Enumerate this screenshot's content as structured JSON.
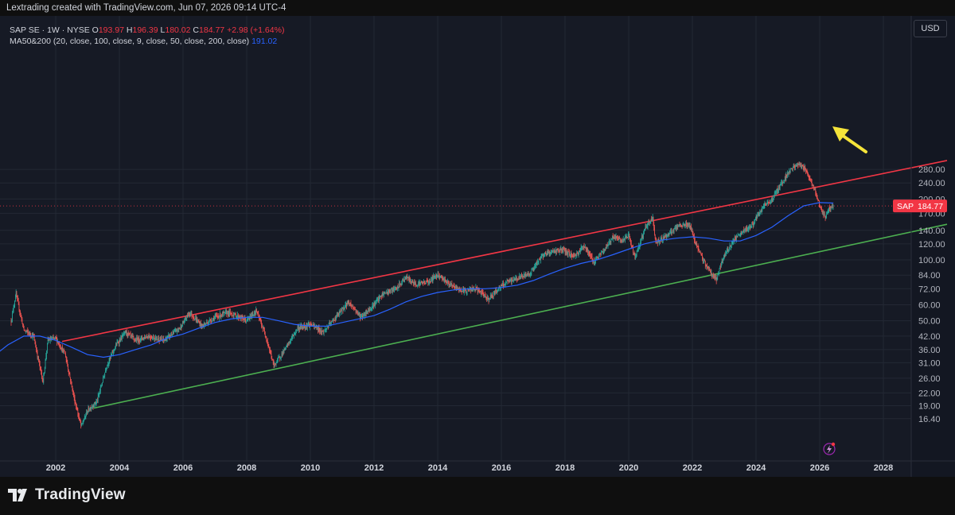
{
  "header": {
    "caption": "Lextrading created with TradingView.com, Jun 07, 2026 09:14 UTC-4"
  },
  "legend": {
    "symbol": "SAP SE · 1W · NYSE",
    "open_label": "O",
    "open": "193.97",
    "high_label": "H",
    "high": "196.39",
    "low_label": "L",
    "low": "180.02",
    "close_label": "C",
    "close": "184.77",
    "change": "+2.98 (+1.64%)",
    "ma_label": "MA50&200 (20, close, 100, close, 9, close, 50, close, 200, close)",
    "ma_value": "191.02"
  },
  "currency_button": "USD",
  "price_tag": {
    "symbol": "SAP",
    "value": "184.77"
  },
  "footer": {
    "brand": "TradingView"
  },
  "colors": {
    "background": "#161a25",
    "up": "#26a69a",
    "down": "#ef5350",
    "ma": "#2962ff",
    "upper_channel": "#f23645",
    "lower_channel": "#4caf50",
    "arrow": "#f5e43a"
  },
  "icons": [
    "tradingview-logo-icon",
    "lightning-icon",
    "arrow-annotation-icon"
  ],
  "chart_data": {
    "type": "candlestick",
    "scale": "log",
    "timeframe": "1W",
    "y_ticks": [
      "280.00",
      "240.00",
      "200.00",
      "170.00",
      "140.00",
      "120.00",
      "100.00",
      "84.00",
      "72.00",
      "60.00",
      "50.00",
      "42.00",
      "36.00",
      "31.00",
      "26.00",
      "22.00",
      "19.00",
      "16.40"
    ],
    "x_ticks": [
      "2002",
      "2004",
      "2006",
      "2008",
      "2010",
      "2012",
      "2014",
      "2016",
      "2018",
      "2020",
      "2022",
      "2024",
      "2026",
      "2028"
    ],
    "price_path": [
      [
        2000.6,
        50
      ],
      [
        2000.75,
        68
      ],
      [
        2001.0,
        45
      ],
      [
        2001.3,
        42
      ],
      [
        2001.6,
        25
      ],
      [
        2001.75,
        40
      ],
      [
        2002.0,
        41
      ],
      [
        2002.3,
        34
      ],
      [
        2002.6,
        20
      ],
      [
        2002.8,
        15
      ],
      [
        2003.0,
        18
      ],
      [
        2003.3,
        20
      ],
      [
        2003.6,
        30
      ],
      [
        2003.9,
        38
      ],
      [
        2004.2,
        44
      ],
      [
        2004.5,
        40
      ],
      [
        2004.9,
        42
      ],
      [
        2005.4,
        40
      ],
      [
        2005.9,
        46
      ],
      [
        2006.2,
        55
      ],
      [
        2006.6,
        47
      ],
      [
        2007.0,
        52
      ],
      [
        2007.4,
        55
      ],
      [
        2007.8,
        52
      ],
      [
        2008.0,
        50
      ],
      [
        2008.3,
        56
      ],
      [
        2008.6,
        42
      ],
      [
        2008.85,
        30
      ],
      [
        2009.2,
        36
      ],
      [
        2009.6,
        46
      ],
      [
        2010.0,
        48
      ],
      [
        2010.4,
        44
      ],
      [
        2010.8,
        52
      ],
      [
        2011.2,
        62
      ],
      [
        2011.6,
        52
      ],
      [
        2011.9,
        58
      ],
      [
        2012.3,
        68
      ],
      [
        2012.7,
        72
      ],
      [
        2013.0,
        82
      ],
      [
        2013.3,
        76
      ],
      [
        2013.7,
        78
      ],
      [
        2014.0,
        85
      ],
      [
        2014.4,
        75
      ],
      [
        2014.8,
        70
      ],
      [
        2015.2,
        72
      ],
      [
        2015.6,
        64
      ],
      [
        2015.9,
        72
      ],
      [
        2016.2,
        78
      ],
      [
        2016.6,
        82
      ],
      [
        2016.9,
        86
      ],
      [
        2017.3,
        106
      ],
      [
        2017.6,
        110
      ],
      [
        2017.9,
        112
      ],
      [
        2018.3,
        104
      ],
      [
        2018.6,
        118
      ],
      [
        2018.9,
        98
      ],
      [
        2019.2,
        110
      ],
      [
        2019.5,
        130
      ],
      [
        2019.8,
        124
      ],
      [
        2020.0,
        132
      ],
      [
        2020.2,
        102
      ],
      [
        2020.5,
        142
      ],
      [
        2020.75,
        162
      ],
      [
        2020.85,
        122
      ],
      [
        2021.2,
        132
      ],
      [
        2021.6,
        148
      ],
      [
        2021.9,
        150
      ],
      [
        2022.2,
        110
      ],
      [
        2022.5,
        90
      ],
      [
        2022.75,
        80
      ],
      [
        2023.0,
        105
      ],
      [
        2023.3,
        125
      ],
      [
        2023.6,
        138
      ],
      [
        2023.9,
        150
      ],
      [
        2024.2,
        180
      ],
      [
        2024.5,
        200
      ],
      [
        2024.8,
        240
      ],
      [
        2025.1,
        282
      ],
      [
        2025.35,
        298
      ],
      [
        2025.55,
        280
      ],
      [
        2025.7,
        252
      ],
      [
        2025.9,
        210
      ],
      [
        2026.05,
        176
      ],
      [
        2026.18,
        162
      ],
      [
        2026.3,
        180
      ],
      [
        2026.43,
        185
      ]
    ],
    "ma_path": [
      [
        2000.0,
        33
      ],
      [
        2000.5,
        38
      ],
      [
        2001.0,
        42
      ],
      [
        2001.5,
        42
      ],
      [
        2002.0,
        40
      ],
      [
        2002.5,
        37
      ],
      [
        2003.0,
        34
      ],
      [
        2003.5,
        33
      ],
      [
        2004.0,
        34
      ],
      [
        2004.5,
        36
      ],
      [
        2005.0,
        38
      ],
      [
        2005.5,
        41
      ],
      [
        2006.0,
        43
      ],
      [
        2006.5,
        46
      ],
      [
        2007.0,
        49
      ],
      [
        2007.5,
        51
      ],
      [
        2008.0,
        52
      ],
      [
        2008.5,
        52
      ],
      [
        2009.0,
        50
      ],
      [
        2009.5,
        48
      ],
      [
        2010.0,
        47
      ],
      [
        2010.5,
        47
      ],
      [
        2011.0,
        49
      ],
      [
        2011.5,
        51
      ],
      [
        2012.0,
        53
      ],
      [
        2012.5,
        57
      ],
      [
        2013.0,
        62
      ],
      [
        2013.5,
        66
      ],
      [
        2014.0,
        69
      ],
      [
        2014.5,
        71
      ],
      [
        2015.0,
        72
      ],
      [
        2015.5,
        72
      ],
      [
        2016.0,
        73
      ],
      [
        2016.5,
        75
      ],
      [
        2017.0,
        79
      ],
      [
        2017.5,
        85
      ],
      [
        2018.0,
        91
      ],
      [
        2018.5,
        96
      ],
      [
        2019.0,
        100
      ],
      [
        2019.5,
        106
      ],
      [
        2020.0,
        113
      ],
      [
        2020.5,
        120
      ],
      [
        2021.0,
        125
      ],
      [
        2021.5,
        128
      ],
      [
        2022.0,
        130
      ],
      [
        2022.5,
        128
      ],
      [
        2023.0,
        124
      ],
      [
        2023.5,
        124
      ],
      [
        2024.0,
        132
      ],
      [
        2024.5,
        145
      ],
      [
        2025.0,
        165
      ],
      [
        2025.5,
        185
      ],
      [
        2026.0,
        192
      ],
      [
        2026.43,
        191
      ]
    ],
    "upper_channel": {
      "start": [
        2002.2,
        39.5
      ],
      "end": [
        2030.0,
        310
      ]
    },
    "lower_channel": {
      "start": [
        2003.2,
        18.5
      ],
      "end": [
        2030.0,
        150
      ]
    },
    "last_price": 184.77
  }
}
